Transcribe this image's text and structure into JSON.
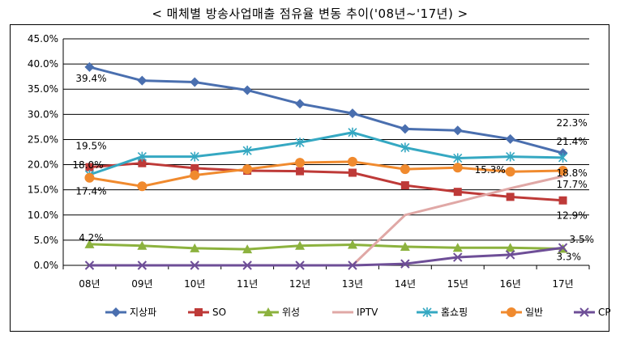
{
  "title": "< 매체별 방송사업매출 점유율 변동 추이('08년~'17년) >",
  "chart_data": {
    "type": "line",
    "title": "< 매체별 방송사업매출 점유율 변동 추이('08년~'17년) >",
    "categories": [
      "08년",
      "09년",
      "10년",
      "11년",
      "12년",
      "13년",
      "14년",
      "15년",
      "16년",
      "17년"
    ],
    "ylim": [
      0,
      45
    ],
    "yticks": [
      "0.0%",
      "5.0%",
      "10.0%",
      "15.0%",
      "20.0%",
      "25.0%",
      "30.0%",
      "35.0%",
      "40.0%",
      "45.0%"
    ],
    "grid": true,
    "legend_position": "bottom",
    "series": [
      {
        "name": "지상파",
        "color": "#4A6FAF",
        "marker": "diamond",
        "values": [
          39.4,
          36.7,
          36.4,
          34.8,
          32.1,
          30.2,
          27.1,
          26.8,
          25.1,
          22.3
        ]
      },
      {
        "name": "SO",
        "color": "#BE3A38",
        "marker": "square",
        "values": [
          19.5,
          20.3,
          19.3,
          18.8,
          18.7,
          18.4,
          15.9,
          14.6,
          13.6,
          12.9
        ]
      },
      {
        "name": "위성",
        "color": "#8CB23E",
        "marker": "triangle",
        "values": [
          4.2,
          3.9,
          3.4,
          3.2,
          3.9,
          4.1,
          3.7,
          3.5,
          3.5,
          3.3
        ]
      },
      {
        "name": "IPTV",
        "color": "#E0A8A6",
        "marker": "none",
        "values": [
          0,
          0,
          0,
          0,
          0,
          0,
          10.0,
          12.6,
          15.3,
          17.7
        ]
      },
      {
        "name": "홈쇼핑",
        "color": "#35A8C2",
        "marker": "asterisk",
        "values": [
          18.0,
          21.6,
          21.6,
          22.8,
          24.4,
          26.4,
          23.4,
          21.3,
          21.6,
          21.4
        ]
      },
      {
        "name": "일반",
        "color": "#F08A2E",
        "marker": "circle",
        "values": [
          17.4,
          15.7,
          17.9,
          19.1,
          20.4,
          20.6,
          19.1,
          19.4,
          18.6,
          18.8
        ]
      },
      {
        "name": "CP",
        "color": "#6E4E97",
        "marker": "x",
        "values": [
          0,
          0,
          0,
          0,
          0,
          0,
          0.3,
          1.6,
          2.1,
          3.5
        ]
      }
    ],
    "annotations": [
      {
        "series": "지상파",
        "index": 0,
        "text": "39.4%"
      },
      {
        "series": "SO",
        "index": 0,
        "text": "19.5%"
      },
      {
        "series": "홈쇼핑",
        "index": 0,
        "text": "18.0%"
      },
      {
        "series": "일반",
        "index": 0,
        "text": "17.4%"
      },
      {
        "series": "위성",
        "index": 0,
        "text": "4.2%"
      },
      {
        "series": "지상파",
        "index": 9,
        "text": "22.3%"
      },
      {
        "series": "홈쇼핑",
        "index": 9,
        "text": "21.4%"
      },
      {
        "series": "일반",
        "index": 9,
        "text": "18.8%"
      },
      {
        "series": "IPTV",
        "index": 8,
        "text": "15.3%"
      },
      {
        "series": "IPTV",
        "index": 9,
        "text": "17.7%"
      },
      {
        "series": "SO",
        "index": 9,
        "text": "12.9%"
      },
      {
        "series": "CP",
        "index": 9,
        "text": "3.5%"
      },
      {
        "series": "위성",
        "index": 9,
        "text": "3.3%"
      }
    ]
  }
}
